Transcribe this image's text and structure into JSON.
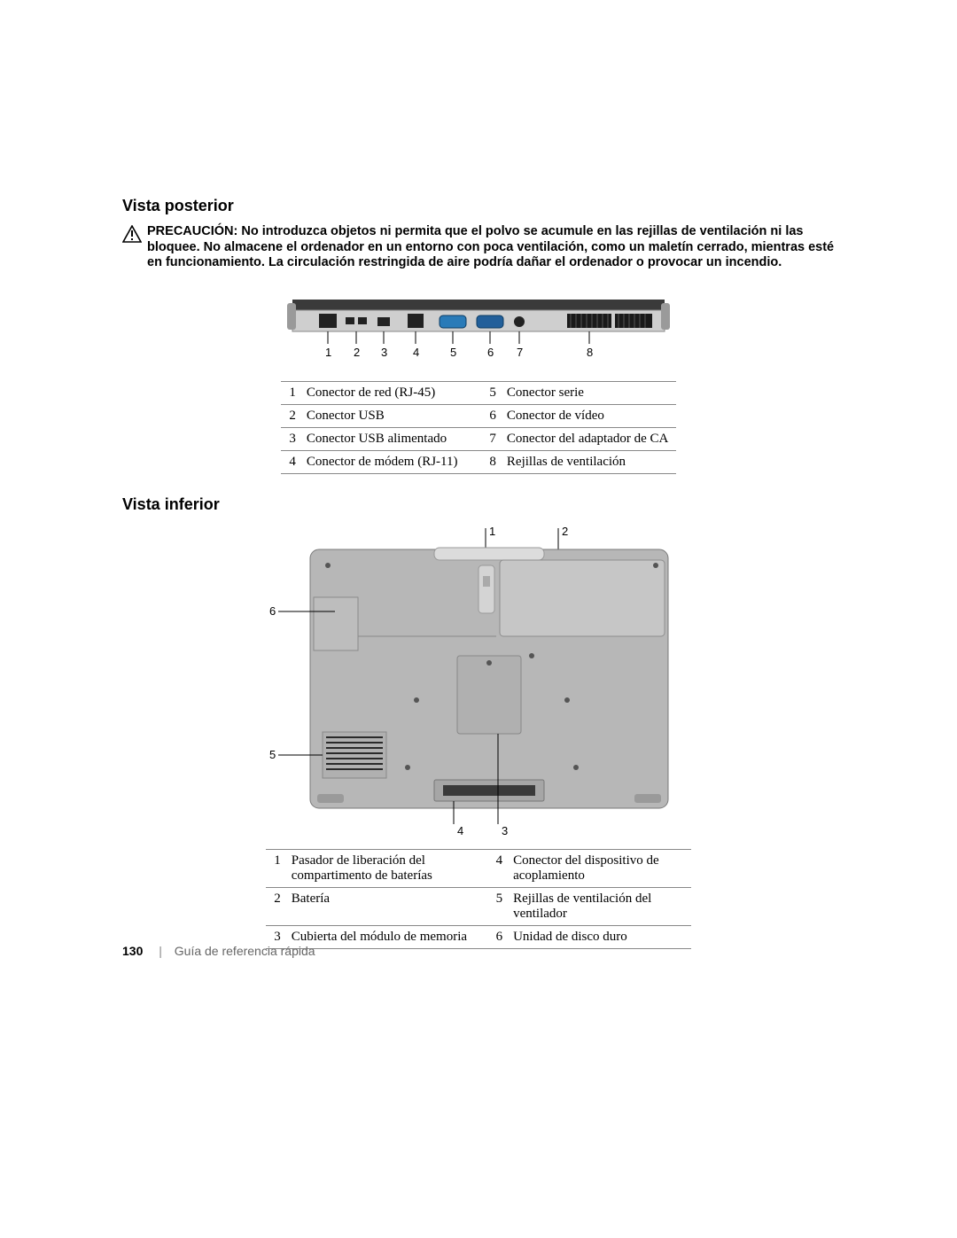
{
  "section1": {
    "heading": "Vista posterior"
  },
  "caution": {
    "label": "PRECAUCIÓN:",
    "text": "No introduzca objetos ni permita que el polvo se acumule en las rejillas de ventilación ni las bloquee. No almacene el ordenador en un entorno con poca ventilación, como un maletín cerrado, mientras esté en funcionamiento. La circulación restringida de aire podría dañar el ordenador o provocar un incendio."
  },
  "diagram1": {
    "callouts": [
      "1",
      "2",
      "3",
      "4",
      "5",
      "6",
      "7",
      "8"
    ],
    "colors": {
      "body_top": "#3a3a3a",
      "body_bottom": "#cfcfcf",
      "edge": "#555555",
      "port_dark": "#222222",
      "serial_blue": "#2a7bb8",
      "vga_blue": "#225f9a",
      "vent": "#1a1a1a",
      "callout_line": "#000000"
    }
  },
  "table1": {
    "rows": [
      {
        "n1": "1",
        "l1": "Conector de red (RJ-45)",
        "n2": "5",
        "l2": "Conector serie"
      },
      {
        "n1": "2",
        "l1": "Conector USB",
        "n2": "6",
        "l2": "Conector de vídeo"
      },
      {
        "n1": "3",
        "l1": "Conector USB alimentado",
        "n2": "7",
        "l2": "Conector del adaptador de CA"
      },
      {
        "n1": "4",
        "l1": "Conector de módem (RJ-11)",
        "n2": "8",
        "l2": "Rejillas de ventilación"
      }
    ]
  },
  "section2": {
    "heading": "Vista inferior"
  },
  "diagram2": {
    "callouts": {
      "top1": "1",
      "top2": "2",
      "left_upper": "6",
      "left_lower": "5",
      "bottom_left": "4",
      "bottom_right": "3"
    },
    "colors": {
      "chassis": "#b7b7b7",
      "chassis_light": "#cacaca",
      "chassis_dark": "#9a9a9a",
      "battery": "#c6c6c6",
      "panel": "#b0b0b0",
      "screw": "#555555",
      "vent": "#2a2a2a",
      "dock": "#3a3a3a",
      "latch": "#d4d4d4",
      "line": "#000000"
    }
  },
  "table2": {
    "rows": [
      {
        "n1": "1",
        "l1": "Pasador de liberación del compartimento de baterías",
        "n2": "4",
        "l2": "Conector del dispositivo de acoplamiento"
      },
      {
        "n1": "2",
        "l1": "Batería",
        "n2": "5",
        "l2": "Rejillas de ventilación del ventilador"
      },
      {
        "n1": "3",
        "l1": "Cubierta del módulo de memoria",
        "n2": "6",
        "l2": "Unidad de disco duro"
      }
    ]
  },
  "footer": {
    "page": "130",
    "separator": "|",
    "title": "Guía de referencia rápida"
  }
}
